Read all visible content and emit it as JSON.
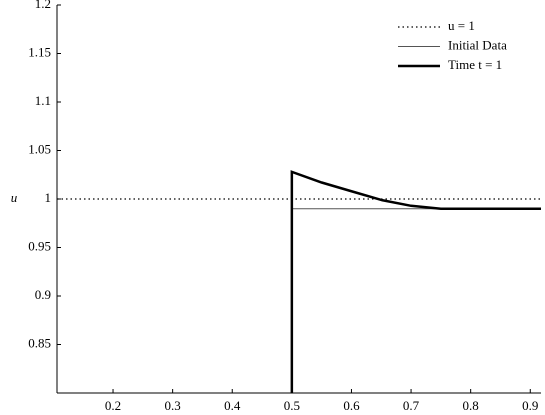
{
  "chart_data": {
    "type": "line",
    "ylabel": "u",
    "xlim": [
      0.106,
      0.918
    ],
    "ylim": [
      0.8,
      1.2
    ],
    "xticks": [
      0.2,
      0.3,
      0.4,
      0.5,
      0.6,
      0.7,
      0.8,
      0.9
    ],
    "yticks": [
      0.85,
      0.9,
      0.95,
      1,
      1.05,
      1.1,
      1.15,
      1.2
    ],
    "legend": "upper right",
    "series": [
      {
        "name": "u = 1",
        "color": "#000000",
        "line_style": "dotted",
        "line_width": 1.2,
        "x": [
          0.106,
          0.918
        ],
        "values": [
          1,
          1
        ]
      },
      {
        "name": "Initial Data",
        "color": "#555555",
        "line_style": "solid",
        "line_width": 1,
        "x": [
          0.5,
          0.5,
          0.918
        ],
        "values": [
          0.8,
          0.99,
          0.99
        ]
      },
      {
        "name": "Time t = 1",
        "color": "#000000",
        "line_style": "solid",
        "line_width": 2.5,
        "x": [
          0.5,
          0.5,
          0.55,
          0.6,
          0.65,
          0.7,
          0.75,
          0.918
        ],
        "values": [
          0.8,
          1.028,
          1.017,
          1.008,
          0.999,
          0.993,
          0.99,
          0.99
        ]
      }
    ]
  }
}
